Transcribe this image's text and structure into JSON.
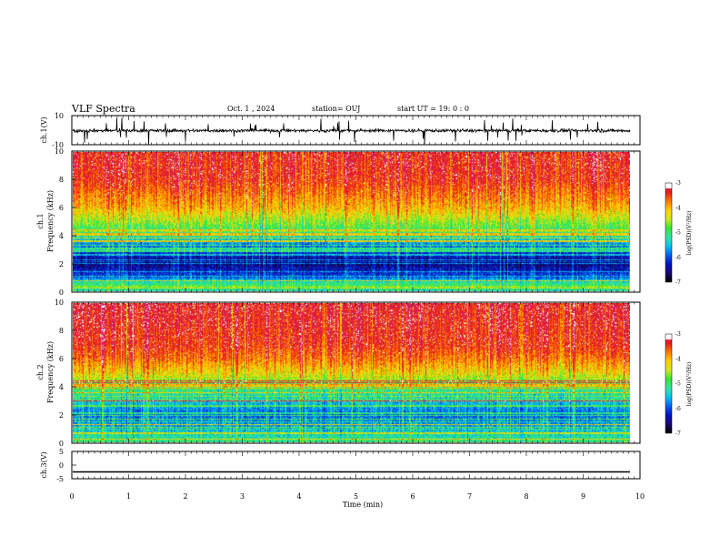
{
  "header": {
    "title": "VLF Spectra",
    "date": "Oct. 1 , 2024",
    "station": "station= OUJ",
    "start": "start  UT =   19: 0  : 0"
  },
  "chart_data": [
    {
      "type": "line",
      "panel": "ch1-waveform",
      "ylabel": "ch.1(V)",
      "ylim": [
        -10,
        10
      ],
      "yticks": [
        "10",
        "-10"
      ],
      "xlim": [
        0,
        10
      ],
      "baseline": 0,
      "noise_amplitude": 1.5,
      "color": "#000000"
    },
    {
      "type": "heatmap",
      "panel": "ch1-spectrogram",
      "ylabel": [
        "ch.1",
        "Frequency  (kHz)"
      ],
      "ylim": [
        0,
        10
      ],
      "yticks": [
        "0",
        "2",
        "4",
        "6",
        "8",
        "10"
      ],
      "xlim": [
        0,
        9.83
      ],
      "colorbar": {
        "label": "log(PSD)(V²/Hz)",
        "range": [
          -7,
          -3
        ],
        "ticks": [
          "-3",
          "-4",
          "-5",
          "-6",
          "-7"
        ]
      },
      "profile": [
        {
          "f": 0,
          "level": -5.2
        },
        {
          "f": 0.5,
          "level": -5.0
        },
        {
          "f": 1.0,
          "level": -6.0
        },
        {
          "f": 2.0,
          "level": -6.6
        },
        {
          "f": 3.0,
          "level": -6.0
        },
        {
          "f": 4.0,
          "level": -5.2
        },
        {
          "f": 5.0,
          "level": -4.6
        },
        {
          "f": 6.0,
          "level": -4.0
        },
        {
          "f": 7.0,
          "level": -3.7
        },
        {
          "f": 8.0,
          "level": -3.4
        },
        {
          "f": 10.0,
          "level": -3.3
        }
      ]
    },
    {
      "type": "heatmap",
      "panel": "ch2-spectrogram",
      "ylabel": [
        "ch.2",
        "Frequency  (kHz)"
      ],
      "ylim": [
        0,
        10
      ],
      "yticks": [
        "0",
        "2",
        "4",
        "6",
        "8",
        "10"
      ],
      "xlim": [
        0,
        9.83
      ],
      "colorbar": {
        "label": "log(PSD)(V²/Hz)",
        "range": [
          -7,
          -3
        ],
        "ticks": [
          "-3",
          "-4",
          "-5",
          "-6",
          "-7"
        ]
      },
      "profile": [
        {
          "f": 0,
          "level": -5.0
        },
        {
          "f": 1.0,
          "level": -5.6
        },
        {
          "f": 2.0,
          "level": -5.9
        },
        {
          "f": 3.0,
          "level": -5.4
        },
        {
          "f": 4.0,
          "level": -4.9
        },
        {
          "f": 5.0,
          "level": -4.2
        },
        {
          "f": 6.0,
          "level": -3.7
        },
        {
          "f": 7.0,
          "level": -3.4
        },
        {
          "f": 10.0,
          "level": -3.2
        }
      ]
    },
    {
      "type": "line",
      "panel": "ch3-waveform",
      "ylabel": "ch.3(V)",
      "ylim": [
        -5,
        5
      ],
      "yticks": [
        "5",
        "0",
        "-5"
      ],
      "xlim": [
        0,
        10
      ],
      "values_constant": -2.5,
      "color": "#000000"
    }
  ],
  "xaxis": {
    "xlabel": "Time  (min)",
    "ticks": [
      "0",
      "1",
      "2",
      "3",
      "4",
      "5",
      "6",
      "7",
      "8",
      "9",
      "10"
    ]
  },
  "colors": {
    "colormap": [
      "#000000",
      "#1a0a73",
      "#0011c8",
      "#0060f0",
      "#00c8f0",
      "#2fe6a0",
      "#33e633",
      "#d2e81a",
      "#ffd200",
      "#ff7a00",
      "#e81a1a",
      "#d61e5a",
      "#ffffff"
    ]
  }
}
